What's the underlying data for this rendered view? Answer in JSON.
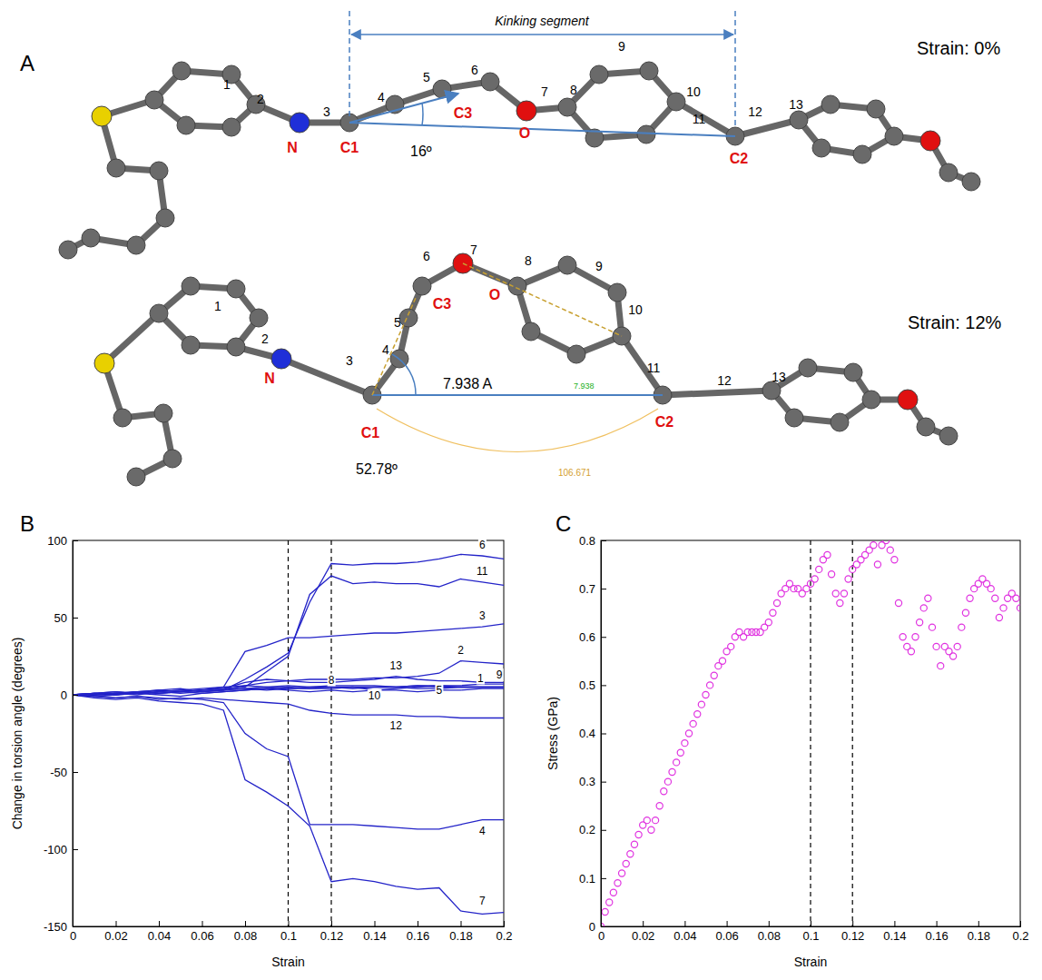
{
  "chart_data": [
    {
      "type": "line",
      "panel": "B",
      "x_label": "Strain",
      "y_label": "Change in torsion angle (degrees)",
      "x": [
        0,
        0.01,
        0.02,
        0.03,
        0.04,
        0.05,
        0.06,
        0.07,
        0.08,
        0.09,
        0.1,
        0.11,
        0.12,
        0.13,
        0.14,
        0.15,
        0.16,
        0.17,
        0.18,
        0.19,
        0.2
      ],
      "series": [
        {
          "name": "1",
          "values": [
            0,
            1,
            2,
            1,
            2,
            3,
            2,
            3,
            4,
            5,
            6,
            5,
            5,
            4,
            5,
            5,
            6,
            5,
            5,
            5,
            5
          ]
        },
        {
          "name": "2",
          "values": [
            0,
            -1,
            0,
            1,
            2,
            1,
            2,
            3,
            6,
            8,
            9,
            10,
            10,
            10,
            11,
            11,
            12,
            14,
            22,
            21,
            20
          ]
        },
        {
          "name": "3",
          "values": [
            0,
            0,
            1,
            2,
            1,
            2,
            3,
            5,
            28,
            32,
            37,
            37,
            38,
            39,
            40,
            40,
            41,
            42,
            43,
            44,
            46
          ]
        },
        {
          "name": "4",
          "values": [
            0,
            -1,
            -2,
            -1,
            -3,
            -2,
            -3,
            -5,
            -25,
            -35,
            -40,
            -84,
            -84,
            -84,
            -85,
            -86,
            -87,
            -87,
            -84,
            -81,
            -81
          ]
        },
        {
          "name": "5",
          "values": [
            0,
            1,
            0,
            2,
            3,
            2,
            1,
            2,
            3,
            4,
            3,
            2,
            3,
            2,
            3,
            3,
            2,
            3,
            3,
            4,
            4
          ]
        },
        {
          "name": "6",
          "values": [
            0,
            1,
            2,
            1,
            3,
            4,
            2,
            3,
            10,
            18,
            27,
            60,
            85,
            84,
            85,
            85,
            86,
            88,
            91,
            90,
            88
          ]
        },
        {
          "name": "7",
          "values": [
            0,
            -2,
            -3,
            -2,
            -4,
            -5,
            -6,
            -10,
            -55,
            -63,
            -72,
            -85,
            -121,
            -119,
            -121,
            -124,
            -126,
            -125,
            -140,
            -142,
            -141
          ]
        },
        {
          "name": "8",
          "values": [
            0,
            0,
            1,
            0,
            2,
            3,
            4,
            5,
            6,
            5,
            4,
            4,
            5,
            5,
            5,
            5,
            4,
            4,
            5,
            5,
            5
          ]
        },
        {
          "name": "9",
          "values": [
            0,
            1,
            1,
            2,
            1,
            2,
            3,
            3,
            4,
            3,
            4,
            5,
            6,
            6,
            6,
            5,
            6,
            6,
            6,
            7,
            7
          ]
        },
        {
          "name": "10",
          "values": [
            0,
            -1,
            0,
            1,
            0,
            -1,
            1,
            2,
            3,
            4,
            5,
            4,
            4,
            5,
            3,
            4,
            5,
            6,
            5,
            5,
            5
          ]
        },
        {
          "name": "11",
          "values": [
            0,
            0,
            1,
            2,
            1,
            2,
            3,
            4,
            5,
            15,
            25,
            65,
            77,
            72,
            73,
            72,
            72,
            70,
            75,
            73,
            71
          ]
        },
        {
          "name": "12",
          "values": [
            0,
            -1,
            -2,
            -1,
            -2,
            -3,
            -2,
            -3,
            -4,
            -5,
            -6,
            -10,
            -12,
            -13,
            -13,
            -13,
            -14,
            -14,
            -15,
            -15,
            -15
          ]
        },
        {
          "name": "13",
          "values": [
            0,
            1,
            0,
            2,
            3,
            2,
            3,
            4,
            8,
            10,
            9,
            8,
            8,
            9,
            10,
            12,
            10,
            9,
            9,
            8,
            8
          ]
        }
      ],
      "color": "#2323c8",
      "xlim": [
        0,
        0.2
      ],
      "xticks": [
        0,
        0.02,
        0.04,
        0.06,
        0.08,
        0.1,
        0.12,
        0.14,
        0.16,
        0.18,
        0.2
      ],
      "ylim": [
        -150,
        100
      ],
      "yticks": [
        -150,
        -100,
        -50,
        0,
        50,
        100
      ],
      "vlines": [
        0.1,
        0.12
      ],
      "grid": false
    },
    {
      "type": "scatter",
      "panel": "C",
      "x_label": "Strain",
      "y_label": "Stress (GPa)",
      "x": [
        0,
        0.002,
        0.004,
        0.006,
        0.008,
        0.01,
        0.012,
        0.014,
        0.016,
        0.018,
        0.02,
        0.022,
        0.024,
        0.026,
        0.028,
        0.03,
        0.032,
        0.034,
        0.036,
        0.038,
        0.04,
        0.042,
        0.044,
        0.046,
        0.048,
        0.05,
        0.052,
        0.054,
        0.056,
        0.058,
        0.06,
        0.062,
        0.064,
        0.066,
        0.068,
        0.07,
        0.072,
        0.074,
        0.076,
        0.078,
        0.08,
        0.082,
        0.084,
        0.086,
        0.088,
        0.09,
        0.092,
        0.094,
        0.096,
        0.098,
        0.1,
        0.102,
        0.104,
        0.106,
        0.108,
        0.11,
        0.112,
        0.114,
        0.116,
        0.118,
        0.12,
        0.122,
        0.124,
        0.126,
        0.128,
        0.13,
        0.132,
        0.134,
        0.136,
        0.138,
        0.14,
        0.142,
        0.144,
        0.146,
        0.148,
        0.15,
        0.152,
        0.154,
        0.156,
        0.158,
        0.16,
        0.162,
        0.164,
        0.166,
        0.168,
        0.17,
        0.172,
        0.174,
        0.176,
        0.178,
        0.18,
        0.182,
        0.184,
        0.186,
        0.188,
        0.19,
        0.192,
        0.194,
        0.196,
        0.198,
        0.2
      ],
      "values": [
        0,
        0.03,
        0.05,
        0.07,
        0.09,
        0.11,
        0.13,
        0.15,
        0.17,
        0.19,
        0.21,
        0.22,
        0.2,
        0.22,
        0.25,
        0.28,
        0.3,
        0.32,
        0.34,
        0.36,
        0.38,
        0.4,
        0.42,
        0.44,
        0.46,
        0.48,
        0.5,
        0.52,
        0.54,
        0.55,
        0.57,
        0.58,
        0.6,
        0.61,
        0.6,
        0.61,
        0.61,
        0.61,
        0.61,
        0.62,
        0.63,
        0.65,
        0.67,
        0.69,
        0.7,
        0.71,
        0.7,
        0.7,
        0.69,
        0.7,
        0.71,
        0.72,
        0.74,
        0.76,
        0.77,
        0.73,
        0.69,
        0.67,
        0.69,
        0.72,
        0.74,
        0.75,
        0.76,
        0.77,
        0.78,
        0.79,
        0.75,
        0.79,
        0.8,
        0.78,
        0.76,
        0.67,
        0.6,
        0.58,
        0.57,
        0.6,
        0.63,
        0.66,
        0.68,
        0.62,
        0.58,
        0.54,
        0.58,
        0.57,
        0.56,
        0.58,
        0.62,
        0.65,
        0.68,
        0.7,
        0.71,
        0.72,
        0.71,
        0.7,
        0.68,
        0.64,
        0.66,
        0.68,
        0.69,
        0.68,
        0.66
      ],
      "color": "#e033e0",
      "marker": "circle-open",
      "xlim": [
        0,
        0.2
      ],
      "xticks": [
        0,
        0.02,
        0.04,
        0.06,
        0.08,
        0.1,
        0.12,
        0.14,
        0.16,
        0.18,
        0.2
      ],
      "ylim": [
        0,
        0.8
      ],
      "yticks": [
        0,
        0.1,
        0.2,
        0.3,
        0.4,
        0.5,
        0.6,
        0.7,
        0.8
      ],
      "vlines": [
        0.1,
        0.12
      ],
      "grid": false
    }
  ],
  "diagram": {
    "panel": "A",
    "segment_label": "Kinking segment",
    "states": [
      {
        "strain": "Strain: 0%",
        "atom_numbers": [
          "1",
          "2",
          "3",
          "4",
          "5",
          "6",
          "7",
          "8",
          "9",
          "10",
          "11",
          "12",
          "13"
        ],
        "atom_labels": [
          "N",
          "C1",
          "C3",
          "O",
          "C2"
        ],
        "angle": "16º"
      },
      {
        "strain": "Strain: 12%",
        "atom_numbers": [
          "1",
          "2",
          "3",
          "4",
          "5",
          "6",
          "7",
          "8",
          "9",
          "10",
          "11",
          "12",
          "13"
        ],
        "atom_labels": [
          "N",
          "C1",
          "C3",
          "O",
          "C2"
        ],
        "angle": "52.78º",
        "distance": "7.938 A",
        "distance_small": "7.938",
        "angle_small": "106.671"
      }
    ]
  }
}
